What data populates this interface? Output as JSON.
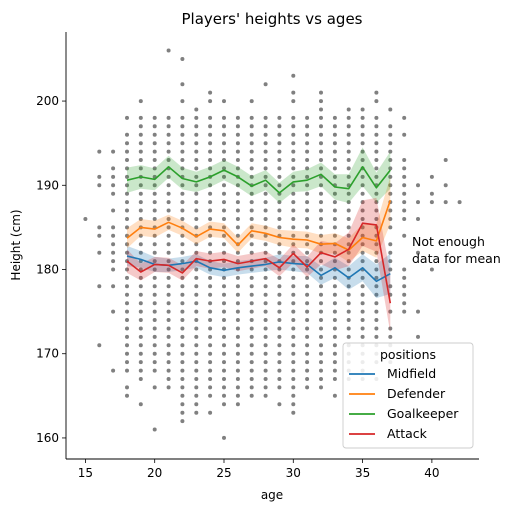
{
  "chart_data": {
    "type": "line",
    "title": "Players' heights vs ages",
    "xlabel": "age",
    "ylabel": "Height (cm)",
    "xlim": [
      13.6,
      43.4
    ],
    "ylim": [
      157.5,
      208.2
    ],
    "xticks": [
      15,
      20,
      25,
      30,
      35,
      40
    ],
    "yticks": [
      160,
      170,
      180,
      190,
      200
    ],
    "grid": false,
    "legend": {
      "title": "positions",
      "placement": "lower-right"
    },
    "annotation": {
      "lines": [
        "Not enough",
        "data for mean"
      ],
      "x": 38.5,
      "y": 182
    },
    "scatter_color": "#808080",
    "series": [
      {
        "name": "Midfield",
        "color": "#1f77b4",
        "x": [
          18,
          19,
          20,
          21,
          22,
          23,
          24,
          25,
          26,
          27,
          28,
          29,
          30,
          31,
          32,
          33,
          34,
          35,
          36,
          37
        ],
        "y": [
          181.6,
          181.2,
          180.6,
          180.5,
          180.7,
          181.0,
          180.2,
          179.9,
          180.2,
          180.4,
          180.6,
          180.9,
          180.7,
          180.6,
          179.3,
          180.2,
          179.0,
          180.2,
          178.6,
          179.5
        ],
        "ci": [
          1.2,
          1.0,
          0.9,
          0.8,
          0.8,
          0.8,
          0.8,
          0.8,
          0.8,
          0.8,
          0.8,
          0.9,
          0.9,
          1.0,
          1.1,
          1.2,
          1.4,
          1.6,
          2.0,
          2.4
        ]
      },
      {
        "name": "Defender",
        "color": "#ff7f0e",
        "x": [
          18,
          19,
          20,
          21,
          22,
          23,
          24,
          25,
          26,
          27,
          28,
          29,
          30,
          31,
          32,
          33,
          34,
          35,
          36,
          37
        ],
        "y": [
          183.7,
          185.0,
          184.8,
          185.6,
          184.9,
          183.9,
          184.8,
          184.6,
          182.9,
          184.6,
          184.3,
          183.8,
          183.6,
          183.5,
          183.0,
          183.1,
          182.3,
          183.8,
          183.4,
          188.2
        ],
        "ci": [
          1.2,
          1.0,
          1.0,
          0.9,
          0.9,
          0.9,
          0.9,
          0.9,
          0.9,
          0.9,
          0.9,
          0.9,
          1.0,
          1.0,
          1.1,
          1.2,
          1.4,
          1.6,
          2.0,
          2.8
        ]
      },
      {
        "name": "Goalkeeper",
        "color": "#2ca02c",
        "x": [
          18,
          19,
          20,
          21,
          22,
          23,
          24,
          25,
          26,
          27,
          28,
          29,
          30,
          31,
          32,
          33,
          34,
          35,
          36,
          37
        ],
        "y": [
          190.6,
          191.0,
          190.7,
          192.2,
          190.8,
          190.4,
          191.0,
          191.8,
          191.0,
          189.9,
          190.6,
          189.1,
          190.4,
          190.6,
          191.3,
          189.8,
          189.6,
          192.2,
          189.7,
          191.8
        ],
        "ci": [
          1.5,
          1.4,
          1.3,
          1.3,
          1.3,
          1.2,
          1.2,
          1.2,
          1.2,
          1.2,
          1.2,
          1.2,
          1.2,
          1.3,
          1.4,
          1.5,
          1.7,
          2.3,
          1.8,
          2.2
        ]
      },
      {
        "name": "Attack",
        "color": "#d62728",
        "x": [
          18,
          19,
          20,
          21,
          22,
          23,
          24,
          25,
          26,
          27,
          28,
          29,
          30,
          31,
          32,
          33,
          34,
          35,
          36,
          37
        ],
        "y": [
          181.0,
          179.7,
          180.6,
          180.5,
          179.6,
          181.3,
          181.0,
          181.2,
          180.7,
          181.0,
          181.3,
          180.2,
          181.9,
          180.3,
          182.0,
          181.5,
          182.4,
          185.5,
          185.3,
          176.0
        ],
        "ci": [
          1.4,
          1.0,
          0.9,
          0.9,
          0.9,
          0.9,
          0.9,
          0.9,
          0.9,
          0.9,
          0.9,
          1.0,
          1.1,
          1.2,
          1.4,
          1.6,
          2.0,
          2.7,
          3.2,
          3.5
        ]
      }
    ],
    "scatter_columns": [
      {
        "x": 15,
        "y": [
          186
        ]
      },
      {
        "x": 16,
        "y": [
          171,
          178,
          182,
          184,
          185,
          190,
          191,
          194
        ]
      },
      {
        "x": 17,
        "y": [
          168,
          175,
          178,
          180,
          181,
          182,
          183,
          184,
          185,
          187,
          189,
          190,
          191,
          192,
          194
        ]
      },
      {
        "x": 18,
        "y": [
          165,
          166,
          168,
          169,
          170,
          171,
          172,
          173,
          174,
          175,
          176,
          177,
          178,
          179,
          180,
          181,
          182,
          183,
          184,
          185,
          186,
          187,
          188,
          189,
          190,
          191,
          192,
          193,
          194,
          195,
          196,
          198
        ]
      },
      {
        "x": 19,
        "y": [
          164,
          167,
          168,
          169,
          170,
          171,
          172,
          173,
          174,
          175,
          176,
          177,
          178,
          179,
          180,
          181,
          182,
          183,
          184,
          185,
          186,
          187,
          188,
          189,
          190,
          191,
          192,
          193,
          194,
          195,
          196,
          197,
          198,
          200
        ]
      },
      {
        "x": 20,
        "y": [
          161,
          166,
          168,
          169,
          170,
          171,
          172,
          173,
          174,
          175,
          176,
          177,
          178,
          179,
          180,
          181,
          182,
          183,
          184,
          185,
          186,
          187,
          188,
          189,
          190,
          191,
          192,
          193,
          194,
          195,
          196,
          197,
          198
        ]
      },
      {
        "x": 21,
        "y": [
          166,
          167,
          168,
          169,
          170,
          171,
          172,
          173,
          174,
          175,
          176,
          177,
          178,
          179,
          180,
          181,
          182,
          183,
          184,
          185,
          186,
          187,
          188,
          189,
          190,
          191,
          192,
          193,
          194,
          195,
          196,
          197,
          198,
          206
        ]
      },
      {
        "x": 22,
        "y": [
          162,
          163,
          164,
          165,
          166,
          167,
          168,
          169,
          170,
          171,
          172,
          173,
          174,
          175,
          176,
          177,
          178,
          179,
          180,
          181,
          182,
          183,
          184,
          185,
          186,
          187,
          188,
          189,
          190,
          191,
          192,
          193,
          194,
          195,
          196,
          197,
          198,
          200,
          202,
          205
        ]
      },
      {
        "x": 23,
        "y": [
          163,
          164,
          165,
          166,
          167,
          168,
          169,
          170,
          171,
          172,
          173,
          174,
          175,
          176,
          177,
          178,
          179,
          180,
          181,
          182,
          183,
          184,
          185,
          186,
          187,
          188,
          189,
          190,
          191,
          192,
          193,
          194,
          195,
          196,
          197,
          198,
          199
        ]
      },
      {
        "x": 24,
        "y": [
          163,
          165,
          166,
          167,
          168,
          169,
          170,
          171,
          172,
          173,
          174,
          175,
          176,
          177,
          178,
          179,
          180,
          181,
          182,
          183,
          184,
          185,
          186,
          187,
          188,
          189,
          190,
          191,
          192,
          193,
          194,
          195,
          196,
          197,
          198,
          200,
          201
        ]
      },
      {
        "x": 25,
        "y": [
          160,
          164,
          165,
          166,
          167,
          168,
          169,
          170,
          171,
          172,
          173,
          174,
          175,
          176,
          177,
          178,
          179,
          180,
          181,
          182,
          183,
          184,
          185,
          186,
          187,
          188,
          189,
          190,
          191,
          192,
          193,
          194,
          195,
          196,
          197,
          198,
          200
        ]
      },
      {
        "x": 26,
        "y": [
          164,
          165,
          166,
          167,
          168,
          169,
          170,
          171,
          172,
          173,
          174,
          175,
          176,
          177,
          178,
          179,
          180,
          181,
          182,
          183,
          184,
          185,
          186,
          187,
          188,
          189,
          190,
          191,
          192,
          193,
          194,
          195,
          196,
          197,
          198
        ]
      },
      {
        "x": 27,
        "y": [
          165,
          166,
          167,
          168,
          169,
          170,
          171,
          172,
          173,
          174,
          175,
          176,
          177,
          178,
          179,
          180,
          181,
          182,
          183,
          184,
          185,
          186,
          187,
          188,
          189,
          190,
          191,
          192,
          193,
          194,
          195,
          196,
          197,
          198,
          200
        ]
      },
      {
        "x": 28,
        "y": [
          165,
          166,
          167,
          168,
          169,
          170,
          171,
          172,
          173,
          174,
          175,
          176,
          177,
          178,
          179,
          180,
          181,
          182,
          183,
          184,
          185,
          186,
          187,
          188,
          189,
          190,
          191,
          192,
          193,
          194,
          195,
          196,
          197,
          198,
          202
        ]
      },
      {
        "x": 29,
        "y": [
          164,
          166,
          167,
          168,
          169,
          170,
          171,
          172,
          173,
          174,
          175,
          176,
          177,
          178,
          179,
          180,
          181,
          182,
          183,
          184,
          185,
          186,
          187,
          188,
          189,
          190,
          191,
          192,
          193,
          194,
          195,
          196,
          197,
          198
        ]
      },
      {
        "x": 30,
        "y": [
          163,
          164,
          165,
          166,
          167,
          168,
          169,
          170,
          171,
          172,
          173,
          174,
          175,
          176,
          177,
          178,
          179,
          180,
          181,
          182,
          183,
          184,
          185,
          186,
          187,
          188,
          189,
          190,
          191,
          192,
          193,
          194,
          195,
          196,
          197,
          198,
          200,
          201,
          203
        ]
      },
      {
        "x": 31,
        "y": [
          166,
          167,
          168,
          169,
          170,
          171,
          172,
          173,
          174,
          175,
          176,
          177,
          178,
          179,
          180,
          181,
          182,
          183,
          184,
          185,
          186,
          187,
          188,
          189,
          190,
          191,
          192,
          193,
          194,
          195,
          196,
          197,
          198
        ]
      },
      {
        "x": 32,
        "y": [
          166,
          167,
          168,
          169,
          170,
          171,
          172,
          173,
          174,
          175,
          176,
          177,
          178,
          179,
          180,
          181,
          182,
          183,
          184,
          185,
          186,
          187,
          188,
          189,
          190,
          191,
          192,
          193,
          194,
          195,
          196,
          197,
          198,
          199,
          200,
          201
        ]
      },
      {
        "x": 33,
        "y": [
          165,
          167,
          168,
          169,
          170,
          171,
          172,
          173,
          174,
          175,
          176,
          177,
          178,
          179,
          180,
          181,
          182,
          183,
          184,
          185,
          186,
          187,
          188,
          189,
          190,
          191,
          192,
          193,
          194,
          195,
          196,
          197,
          198
        ]
      },
      {
        "x": 34,
        "y": [
          167,
          168,
          169,
          170,
          171,
          172,
          173,
          174,
          175,
          176,
          177,
          178,
          179,
          180,
          181,
          182,
          183,
          184,
          185,
          186,
          187,
          188,
          189,
          190,
          191,
          192,
          193,
          194,
          195,
          196,
          197,
          198,
          199
        ]
      },
      {
        "x": 35,
        "y": [
          167,
          168,
          169,
          170,
          171,
          172,
          173,
          174,
          175,
          176,
          177,
          178,
          179,
          180,
          181,
          182,
          183,
          184,
          185,
          186,
          187,
          188,
          189,
          190,
          191,
          192,
          193,
          194,
          195,
          196,
          197,
          198,
          199
        ]
      },
      {
        "x": 36,
        "y": [
          167,
          169,
          170,
          171,
          172,
          173,
          174,
          175,
          176,
          177,
          178,
          179,
          180,
          181,
          182,
          183,
          184,
          185,
          186,
          187,
          188,
          189,
          190,
          191,
          192,
          193,
          194,
          195,
          196,
          197,
          198,
          200,
          201
        ]
      },
      {
        "x": 37,
        "y": [
          169,
          171,
          172,
          173,
          175,
          177,
          178,
          180,
          181,
          182,
          183,
          185,
          186,
          187,
          188,
          189,
          190,
          191,
          192,
          193,
          194,
          195,
          196,
          197,
          199
        ]
      },
      {
        "x": 38,
        "y": [
          170,
          175,
          176,
          177,
          178,
          179,
          180,
          184,
          186,
          187,
          188,
          189,
          190,
          191,
          192,
          193,
          196,
          198
        ]
      },
      {
        "x": 39,
        "y": [
          172,
          175,
          182,
          186,
          188,
          190
        ]
      },
      {
        "x": 40,
        "y": [
          180,
          188,
          189,
          191
        ]
      },
      {
        "x": 41,
        "y": [
          188,
          190,
          193
        ]
      },
      {
        "x": 42,
        "y": [
          188
        ]
      }
    ]
  }
}
